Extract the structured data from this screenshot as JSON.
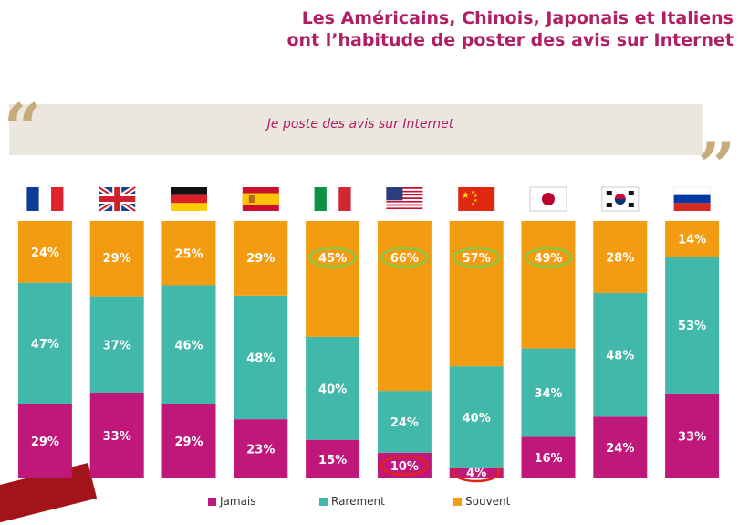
{
  "title_lines": [
    "Les Américains, Chinois, Japonais et Italiens",
    "ont l’habitude de poster des avis sur Internet"
  ],
  "quote": "Je poste des avis sur Internet",
  "colors": {
    "jamais": "#c0177b",
    "rarement": "#41b8aa",
    "souvent": "#f39c12",
    "accent": "#b01e63",
    "highlight_green": "#8dc63f",
    "highlight_red": "#e2231a"
  },
  "chart_data": {
    "type": "bar",
    "stacked": true,
    "orientation": "vertical",
    "categories": [
      "France",
      "Royaume-Uni",
      "Allemagne",
      "Espagne",
      "Italie",
      "États-Unis",
      "Chine",
      "Japon",
      "Corée du Sud",
      "Russie"
    ],
    "flag_icons": [
      "flag-france-icon",
      "flag-uk-icon",
      "flag-germany-icon",
      "flag-spain-icon",
      "flag-italy-icon",
      "flag-usa-icon",
      "flag-china-icon",
      "flag-japan-icon",
      "flag-south-korea-icon",
      "flag-russia-icon"
    ],
    "series": [
      {
        "name": "Jamais",
        "values": [
          29,
          33,
          29,
          23,
          15,
          10,
          4,
          16,
          24,
          33
        ],
        "labels": [
          "29%",
          "33%",
          "29%",
          "23%",
          "15%",
          "10%",
          "4%",
          "16%",
          "24%",
          "33%"
        ]
      },
      {
        "name": "Rarement",
        "values": [
          47,
          37,
          46,
          48,
          40,
          24,
          40,
          34,
          48,
          53
        ],
        "labels": [
          "47%",
          "37%",
          "46%",
          "48%",
          "40%",
          "24%",
          "40%",
          "34%",
          "48%",
          "53%"
        ]
      },
      {
        "name": "Souvent",
        "values": [
          24,
          29,
          25,
          29,
          45,
          66,
          57,
          49,
          28,
          14
        ],
        "labels": [
          "24%",
          "29%",
          "25%",
          "29%",
          "45%",
          "66%",
          "57%",
          "49%",
          "28%",
          "14%"
        ]
      }
    ],
    "highlighted": [
      {
        "series": "Souvent",
        "category": "Italie",
        "color": "green"
      },
      {
        "series": "Souvent",
        "category": "États-Unis",
        "color": "green"
      },
      {
        "series": "Souvent",
        "category": "Chine",
        "color": "green"
      },
      {
        "series": "Souvent",
        "category": "Japon",
        "color": "green"
      },
      {
        "series": "Jamais",
        "category": "États-Unis",
        "color": "red"
      },
      {
        "series": "Jamais",
        "category": "Chine",
        "color": "red"
      }
    ],
    "legend_position": "bottom",
    "grid": false
  },
  "legend": [
    "Jamais",
    "Rarement",
    "Souvent"
  ]
}
